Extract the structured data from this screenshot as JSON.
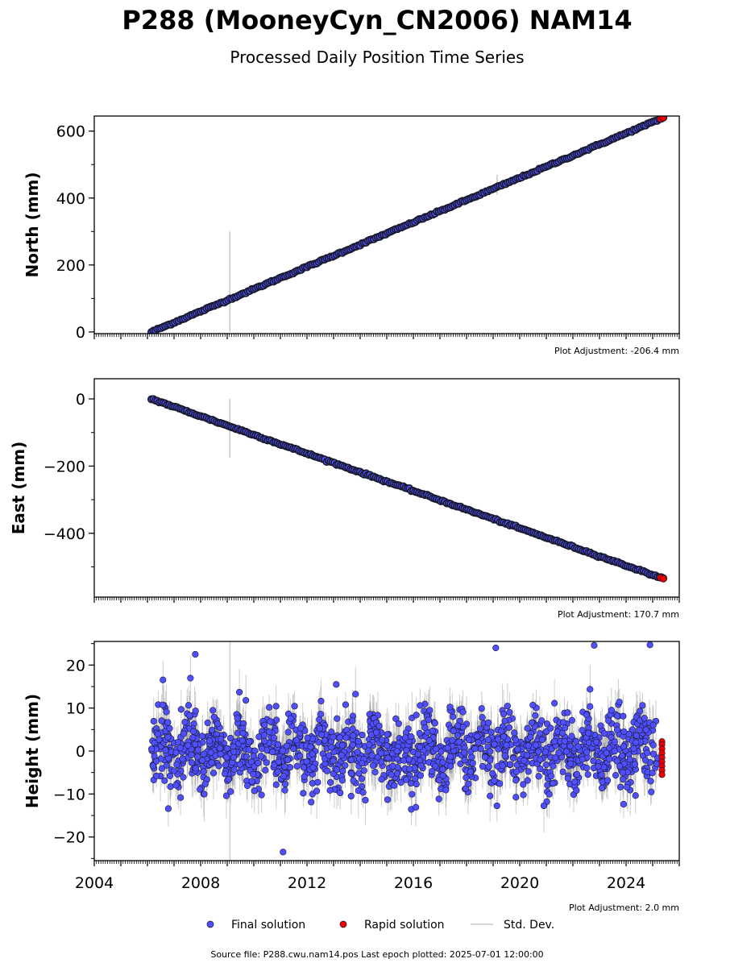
{
  "header": {
    "title": "P288 (MooneyCyn_CN2006) NAM14",
    "subtitle": "Processed Daily Position Time Series"
  },
  "colors": {
    "final": "#4f4fff",
    "rapid": "#ee0000",
    "stddev": "#c8c8c8",
    "edge": "#1a1a2e"
  },
  "legend": {
    "final": "Final solution",
    "rapid": "Rapid solution",
    "stddev": "Std. Dev."
  },
  "footer": {
    "source": "Source file: P288.cwu.nam14.pos  Last epoch plotted: 2025-07-01 12:00:00"
  },
  "chart_data": [
    {
      "type": "scatter",
      "ylabel": "North (mm)",
      "adjustment": "Plot Adjustment: -206.4 mm",
      "xlim": [
        2004,
        2026
      ],
      "ylim": [
        -5,
        645
      ],
      "yticks": [
        0,
        200,
        400,
        600
      ],
      "ytick_labels": [
        "0",
        "200",
        "400",
        "600"
      ],
      "grid": false,
      "trend": {
        "x_start": 2006.15,
        "y_start": 0,
        "x_end": 2025.4,
        "y_end": 640
      },
      "rapid_x": [
        2025.3,
        2025.4
      ],
      "outlier_bars": [
        {
          "x": 2009.1,
          "low": 0,
          "high": 300
        },
        {
          "x": 2019.15,
          "low": 410,
          "high": 470
        }
      ]
    },
    {
      "type": "scatter",
      "ylabel": "East (mm)",
      "adjustment": "Plot Adjustment: 170.7 mm",
      "xlim": [
        2004,
        2026
      ],
      "ylim": [
        -590,
        60
      ],
      "yticks": [
        0,
        -200,
        -400
      ],
      "ytick_labels": [
        "0",
        "−200",
        "−400"
      ],
      "grid": false,
      "trend": {
        "x_start": 2006.15,
        "y_start": 0,
        "x_end": 2025.4,
        "y_end": -535
      },
      "rapid_x": [
        2025.3,
        2025.4
      ],
      "outlier_bars": [
        {
          "x": 2009.1,
          "low": -175,
          "high": 0
        }
      ]
    },
    {
      "type": "scatter",
      "ylabel": "Height (mm)",
      "adjustment": "Plot Adjustment: 2.0 mm",
      "xlim": [
        2004,
        2026
      ],
      "ylim": [
        -25.5,
        25.5
      ],
      "yticks": [
        20,
        10,
        0,
        -10,
        -20
      ],
      "ytick_labels": [
        "20",
        "10",
        "0",
        "−10",
        "−20"
      ],
      "grid": false,
      "x_start": 2006.15,
      "x_end": 2025.2,
      "noise_sd": 5.5,
      "rapid_x": 2025.35,
      "rapid_values": [
        2.2,
        1.5,
        0.5,
        -0.5,
        -1.5,
        -2.5,
        -3.5,
        -4.5,
        -5.5
      ],
      "outliers": [
        {
          "x": 2007.8,
          "y": 22.5
        },
        {
          "x": 2019.1,
          "y": 24
        },
        {
          "x": 2022.8,
          "y": 24.6
        },
        {
          "x": 2024.9,
          "y": 24.7
        },
        {
          "x": 2011.1,
          "y": -23.5
        },
        {
          "x": 2013.1,
          "y": 15.5
        }
      ],
      "xticks": [
        2004,
        2008,
        2012,
        2016,
        2020,
        2024
      ],
      "xtick_labels": [
        "2004",
        "2008",
        "2012",
        "2016",
        "2020",
        "2024"
      ]
    }
  ]
}
